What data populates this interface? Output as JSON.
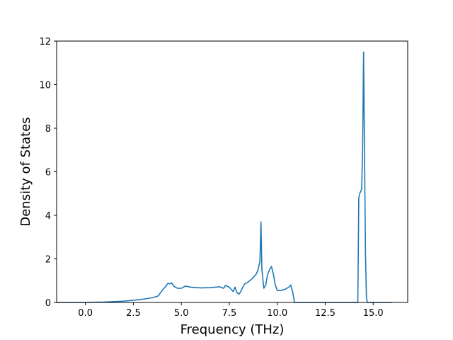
{
  "chart_data": {
    "type": "line",
    "title": "",
    "xlabel": "Frequency (THz)",
    "ylabel": "Density of States",
    "xlim": [
      -1.5,
      16.8
    ],
    "ylim": [
      0,
      12
    ],
    "xticks": [
      0.0,
      2.5,
      5.0,
      7.5,
      10.0,
      12.5,
      15.0
    ],
    "xtick_labels": [
      "0.0",
      "2.5",
      "5.0",
      "7.5",
      "10.0",
      "12.5",
      "15.0"
    ],
    "yticks": [
      0,
      2,
      4,
      6,
      8,
      10,
      12
    ],
    "ytick_labels": [
      "0",
      "2",
      "4",
      "6",
      "8",
      "10",
      "12"
    ],
    "grid": false,
    "series": [
      {
        "color": "#1f77b4",
        "x": [
          -1.5,
          0.0,
          1.0,
          2.0,
          2.5,
          3.0,
          3.5,
          3.8,
          4.0,
          4.2,
          4.3,
          4.4,
          4.5,
          4.6,
          4.8,
          5.0,
          5.2,
          5.5,
          6.0,
          6.5,
          7.0,
          7.2,
          7.3,
          7.5,
          7.7,
          7.8,
          7.9,
          8.0,
          8.1,
          8.2,
          8.3,
          8.5,
          8.7,
          8.9,
          9.0,
          9.1,
          9.15,
          9.2,
          9.3,
          9.4,
          9.5,
          9.6,
          9.7,
          9.8,
          9.9,
          10.0,
          10.2,
          10.4,
          10.6,
          10.7,
          10.8,
          10.9,
          11.5,
          12.0,
          13.0,
          14.0,
          14.2,
          14.25,
          14.3,
          14.4,
          14.45,
          14.5,
          14.6,
          14.65,
          14.7,
          15.0,
          16.0
        ],
        "y": [
          0,
          0.0,
          0.02,
          0.06,
          0.1,
          0.15,
          0.22,
          0.3,
          0.55,
          0.75,
          0.88,
          0.85,
          0.9,
          0.75,
          0.65,
          0.65,
          0.75,
          0.7,
          0.67,
          0.68,
          0.72,
          0.65,
          0.78,
          0.7,
          0.5,
          0.7,
          0.45,
          0.38,
          0.5,
          0.7,
          0.85,
          0.95,
          1.1,
          1.3,
          1.5,
          1.9,
          3.7,
          1.5,
          0.65,
          0.8,
          1.3,
          1.5,
          1.65,
          1.3,
          0.8,
          0.55,
          0.55,
          0.6,
          0.7,
          0.8,
          0.5,
          0.0,
          0.0,
          0.0,
          0.0,
          0.0,
          0.0,
          4.8,
          5.0,
          5.2,
          7.0,
          11.5,
          2.2,
          0.2,
          0.0,
          0.0,
          0.0
        ]
      }
    ]
  }
}
